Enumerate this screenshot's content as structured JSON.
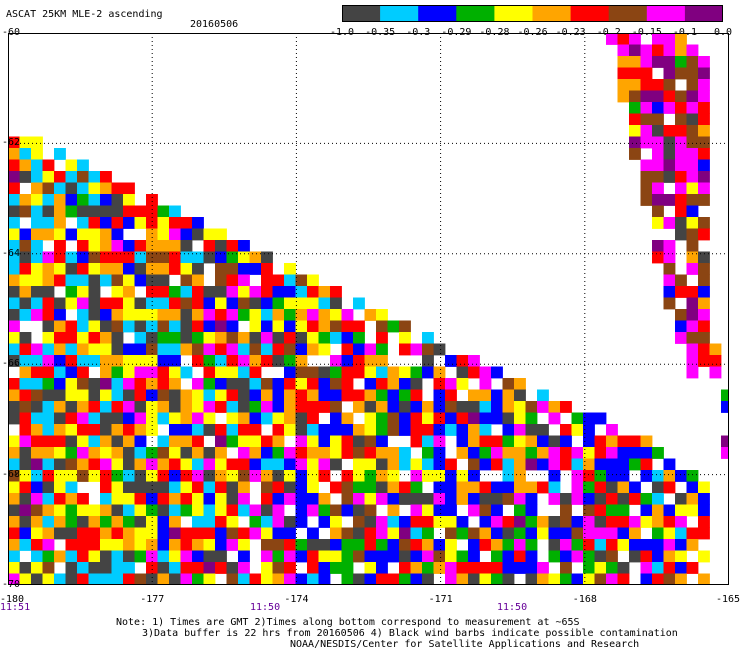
{
  "header": {
    "title": "ASCAT 25KM MLE-2 ascending",
    "date": "20160506"
  },
  "colorbar": {
    "colors": [
      "#444444",
      "#00ccff",
      "#0000ff",
      "#00b000",
      "#ffff00",
      "#ffa500",
      "#ff0000",
      "#8b4513",
      "#ff00ff",
      "#800080"
    ],
    "tick_labels": [
      "-1.0",
      "-0.35",
      "-0.3",
      "-0.29",
      "-0.28",
      "-0.26",
      "-0.23",
      "-0.2",
      "-0.15",
      "-0.1",
      "0.0"
    ]
  },
  "map": {
    "lon_labels": [
      "-180",
      "-177",
      "-174",
      "-171",
      "-168",
      "-165"
    ],
    "lat_labels": [
      "-60",
      "-62",
      "-64",
      "-66",
      "-68",
      "-70"
    ],
    "time_labels": [
      "11:51",
      "11:50",
      "11:50"
    ],
    "lon_range": [
      -180,
      -165
    ],
    "lat_range": [
      -70,
      -60
    ],
    "grid": true
  },
  "notes": {
    "line1": "Note: 1) Times are GMT 2)Times along bottom correspond to measurement at ~65S",
    "line2": "3)Data buffer is 22 hrs from 20160506 4) Black wind barbs indicate possible contamination",
    "line3": "NOAA/NESDIS/Center for Satellite Applications and Research"
  }
}
